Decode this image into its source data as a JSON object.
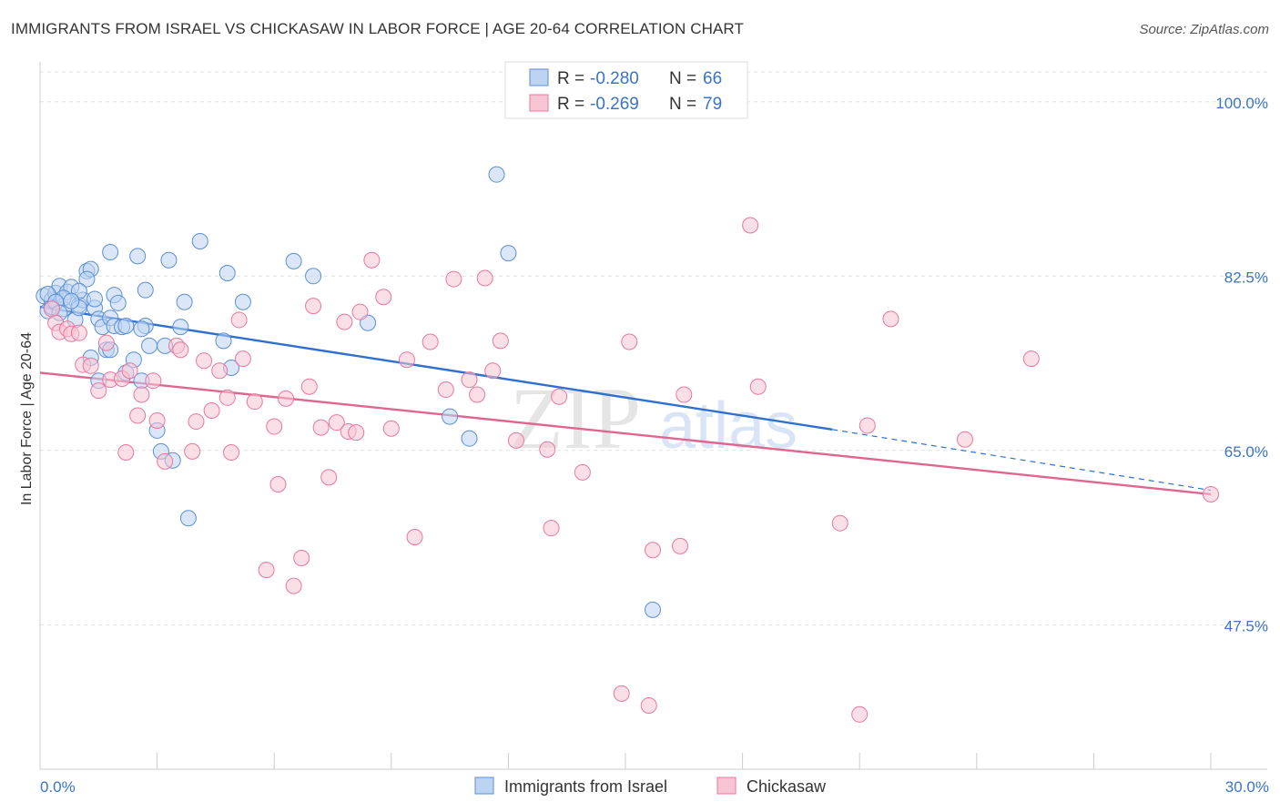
{
  "title": "IMMIGRANTS FROM ISRAEL VS CHICKASAW IN LABOR FORCE | AGE 20-64 CORRELATION CHART",
  "source": "Source: ZipAtlas.com",
  "watermark": {
    "zip": "ZIP",
    "atlas": "atlas"
  },
  "chart_data": {
    "type": "scatter",
    "ylabel": "In Labor Force | Age 20-64",
    "xlim": [
      0,
      30
    ],
    "ylim": [
      33,
      104
    ],
    "x_tick_labels": {
      "min": "0.0%",
      "max": "30.0%"
    },
    "y_ticks": [
      {
        "value": 100,
        "label": "100.0%"
      },
      {
        "value": 82.5,
        "label": "82.5%"
      },
      {
        "value": 65,
        "label": "65.0%"
      },
      {
        "value": 47.5,
        "label": "47.5%"
      }
    ],
    "grid": true,
    "legend_position": "top-center",
    "series": [
      {
        "name": "Immigrants from Israel",
        "r": "-0.280",
        "n": "66",
        "color": "#5b8fd6",
        "fill": "#bdd3f2",
        "trend": {
          "x0": 0,
          "y0": 79.4,
          "x1": 20.3,
          "y1": 67.1,
          "dash_to_x": 30,
          "dash_to_y": 61.0
        },
        "points": [
          [
            0.1,
            80.5
          ],
          [
            0.2,
            79.0
          ],
          [
            0.3,
            80.1
          ],
          [
            0.4,
            80.8
          ],
          [
            0.5,
            81.5
          ],
          [
            0.6,
            79.2
          ],
          [
            0.7,
            80.9
          ],
          [
            0.8,
            81.4
          ],
          [
            0.9,
            78.1
          ],
          [
            1.0,
            79.6
          ],
          [
            1.1,
            80.1
          ],
          [
            1.2,
            83.0
          ],
          [
            1.3,
            83.2
          ],
          [
            1.4,
            79.3
          ],
          [
            1.5,
            78.2
          ],
          [
            1.6,
            77.4
          ],
          [
            1.7,
            75.1
          ],
          [
            1.8,
            78.3
          ],
          [
            1.9,
            80.6
          ],
          [
            2.0,
            79.8
          ],
          [
            0.3,
            79.4
          ],
          [
            0.2,
            80.7
          ],
          [
            1.0,
            79.3
          ],
          [
            1.8,
            75.1
          ],
          [
            1.5,
            72.0
          ],
          [
            1.2,
            82.2
          ],
          [
            1.3,
            74.3
          ],
          [
            1.9,
            77.5
          ],
          [
            2.1,
            77.4
          ],
          [
            2.2,
            77.5
          ],
          [
            2.4,
            74.1
          ],
          [
            2.6,
            72.0
          ],
          [
            2.7,
            77.5
          ],
          [
            2.8,
            75.5
          ],
          [
            3.0,
            67.0
          ],
          [
            3.1,
            64.9
          ],
          [
            3.2,
            75.5
          ],
          [
            3.4,
            64.0
          ],
          [
            3.6,
            77.4
          ],
          [
            3.7,
            79.9
          ],
          [
            3.8,
            58.2
          ],
          [
            4.1,
            86.0
          ],
          [
            4.7,
            76.0
          ],
          [
            4.8,
            82.8
          ],
          [
            4.9,
            73.3
          ],
          [
            5.2,
            79.9
          ],
          [
            6.5,
            84.0
          ],
          [
            7.0,
            82.5
          ],
          [
            8.4,
            77.8
          ],
          [
            10.5,
            68.4
          ],
          [
            11.0,
            66.2
          ],
          [
            11.7,
            92.7
          ],
          [
            12.0,
            84.8
          ],
          [
            15.7,
            49.0
          ],
          [
            1.8,
            84.9
          ],
          [
            2.5,
            84.5
          ],
          [
            3.3,
            84.1
          ],
          [
            2.7,
            81.1
          ],
          [
            1.0,
            81.0
          ],
          [
            0.6,
            80.3
          ],
          [
            0.4,
            79.9
          ],
          [
            0.8,
            80.0
          ],
          [
            1.4,
            80.2
          ],
          [
            2.2,
            72.8
          ],
          [
            2.6,
            77.2
          ],
          [
            0.5,
            78.8
          ]
        ]
      },
      {
        "name": "Chickasaw",
        "r": "-0.269",
        "n": "79",
        "color": "#e8789f",
        "fill": "#f7c4d4",
        "trend": {
          "x0": 0,
          "y0": 72.8,
          "x1": 30,
          "y1": 60.6
        },
        "points": [
          [
            0.3,
            79.2
          ],
          [
            0.4,
            77.8
          ],
          [
            0.5,
            76.9
          ],
          [
            0.7,
            77.2
          ],
          [
            0.8,
            76.7
          ],
          [
            1.0,
            76.8
          ],
          [
            1.1,
            73.6
          ],
          [
            1.3,
            73.5
          ],
          [
            1.5,
            71.0
          ],
          [
            1.7,
            75.8
          ],
          [
            1.8,
            72.1
          ],
          [
            2.1,
            72.2
          ],
          [
            2.2,
            64.8
          ],
          [
            2.3,
            73.0
          ],
          [
            2.5,
            68.5
          ],
          [
            2.6,
            70.6
          ],
          [
            2.9,
            72.0
          ],
          [
            3.0,
            68.0
          ],
          [
            3.2,
            63.9
          ],
          [
            3.5,
            75.5
          ],
          [
            3.6,
            75.1
          ],
          [
            3.9,
            64.9
          ],
          [
            4.0,
            67.9
          ],
          [
            4.2,
            74.0
          ],
          [
            4.4,
            69.0
          ],
          [
            4.6,
            73.0
          ],
          [
            4.8,
            70.3
          ],
          [
            4.9,
            64.8
          ],
          [
            5.1,
            78.1
          ],
          [
            5.2,
            74.2
          ],
          [
            5.5,
            69.9
          ],
          [
            5.8,
            53.0
          ],
          [
            6.0,
            67.4
          ],
          [
            6.1,
            61.6
          ],
          [
            6.3,
            70.2
          ],
          [
            6.5,
            51.4
          ],
          [
            6.7,
            54.2
          ],
          [
            6.9,
            71.4
          ],
          [
            7.0,
            79.5
          ],
          [
            7.2,
            67.3
          ],
          [
            7.4,
            62.3
          ],
          [
            7.6,
            67.8
          ],
          [
            7.8,
            77.9
          ],
          [
            7.9,
            66.9
          ],
          [
            8.1,
            66.8
          ],
          [
            8.2,
            78.9
          ],
          [
            8.5,
            84.1
          ],
          [
            8.8,
            80.4
          ],
          [
            9.0,
            67.2
          ],
          [
            9.4,
            74.1
          ],
          [
            9.6,
            56.3
          ],
          [
            10.0,
            75.9
          ],
          [
            10.4,
            71.1
          ],
          [
            10.6,
            82.2
          ],
          [
            11.0,
            72.1
          ],
          [
            11.2,
            70.6
          ],
          [
            11.4,
            82.3
          ],
          [
            11.6,
            73.0
          ],
          [
            11.8,
            76.0
          ],
          [
            12.2,
            66.0
          ],
          [
            13.0,
            65.1
          ],
          [
            13.1,
            57.2
          ],
          [
            13.3,
            70.4
          ],
          [
            13.9,
            62.8
          ],
          [
            14.9,
            40.6
          ],
          [
            15.1,
            75.9
          ],
          [
            15.6,
            39.4
          ],
          [
            15.7,
            55.0
          ],
          [
            16.4,
            55.4
          ],
          [
            16.5,
            70.6
          ],
          [
            18.2,
            87.6
          ],
          [
            18.4,
            71.4
          ],
          [
            20.5,
            57.7
          ],
          [
            21.0,
            38.5
          ],
          [
            21.2,
            67.5
          ],
          [
            21.8,
            78.2
          ],
          [
            23.7,
            66.1
          ],
          [
            25.4,
            74.2
          ],
          [
            30.0,
            60.6
          ]
        ]
      }
    ]
  }
}
